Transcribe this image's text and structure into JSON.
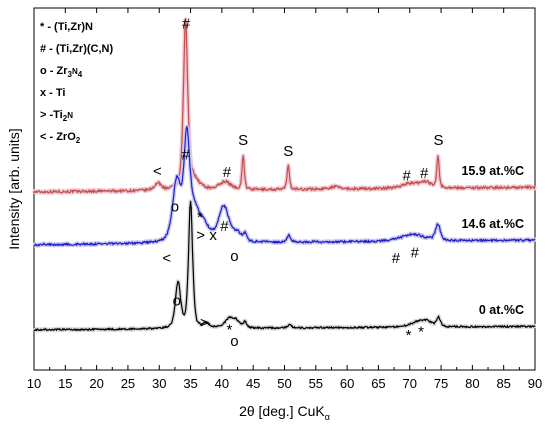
{
  "chart_data": {
    "type": "line",
    "xlabel_main": "2θ [deg.] CuK",
    "xlabel_sub": "α",
    "ylabel": "Intensity [arb. units]",
    "xlim": [
      10,
      90
    ],
    "xticks": [
      10,
      15,
      20,
      25,
      30,
      35,
      40,
      45,
      50,
      55,
      60,
      65,
      70,
      75,
      80,
      85,
      90
    ],
    "y_tick_labels_shown": false,
    "legend": [
      {
        "symbol": "*",
        "phase": "(Ti,Zr)N",
        "sub": ""
      },
      {
        "symbol": "#",
        "phase": "(Ti,Zr)(C,N)",
        "sub": ""
      },
      {
        "symbol": "o",
        "phase": "Zr3N4",
        "sub": "3,4"
      },
      {
        "symbol": "x",
        "phase": "Ti",
        "sub": ""
      },
      {
        "symbol": ">",
        "phase": "Ti2N",
        "sub": "2"
      },
      {
        "symbol": "<",
        "phase": "ZrO2",
        "sub": "2"
      }
    ],
    "legend_text": [
      {
        "pre": "* - (Ti,Zr)N"
      },
      {
        "pre": "# - (Ti,Zr)(C,N)"
      },
      {
        "pre": "o - Zr",
        "sub1": "3",
        "mid": "N",
        "sub2": "4"
      },
      {
        "pre": "x - Ti"
      },
      {
        "pre": "> -Ti",
        "sub1": "2",
        "mid": "N"
      },
      {
        "pre": "< - ZrO",
        "sub1": "2"
      }
    ],
    "series": [
      {
        "name": "15.9 at.%C",
        "color": "#c0504d",
        "halo": "#f2c6d0",
        "baseline": 0.6,
        "slope": 0.04,
        "noise": 0.012,
        "peaks": [
          {
            "x": 29.8,
            "h": 0.06,
            "w": 0.6
          },
          {
            "x": 34.2,
            "h": 1.4,
            "w": 0.35
          },
          {
            "x": 35.0,
            "h": 0.12,
            "w": 1.2
          },
          {
            "x": 40.5,
            "h": 0.07,
            "w": 1.0
          },
          {
            "x": 43.4,
            "h": 0.3,
            "w": 0.2
          },
          {
            "x": 50.6,
            "h": 0.22,
            "w": 0.2
          },
          {
            "x": 58.0,
            "h": 0.02,
            "w": 1.0
          },
          {
            "x": 70.0,
            "h": 0.04,
            "w": 1.5
          },
          {
            "x": 72.5,
            "h": 0.05,
            "w": 1.0
          },
          {
            "x": 74.5,
            "h": 0.28,
            "w": 0.2
          }
        ]
      },
      {
        "name": "14.6 at.%C",
        "color": "#1f1fc8",
        "halo": "#c9c9f0",
        "baseline": 0.14,
        "slope": 0.04,
        "noise": 0.01,
        "peaks": [
          {
            "x": 32.8,
            "h": 0.53,
            "w": 0.7
          },
          {
            "x": 34.4,
            "h": 0.85,
            "w": 0.5
          },
          {
            "x": 35.6,
            "h": 0.25,
            "w": 0.9
          },
          {
            "x": 37.2,
            "h": 0.12,
            "w": 0.9
          },
          {
            "x": 40.3,
            "h": 0.31,
            "w": 0.9
          },
          {
            "x": 42.5,
            "h": 0.07,
            "w": 0.7
          },
          {
            "x": 43.7,
            "h": 0.06,
            "w": 0.3
          },
          {
            "x": 50.7,
            "h": 0.06,
            "w": 0.3
          },
          {
            "x": 70.5,
            "h": 0.06,
            "w": 2.0
          },
          {
            "x": 74.5,
            "h": 0.14,
            "w": 0.4
          }
        ]
      },
      {
        "name": "0 at.%C",
        "color": "#000000",
        "halo": "#d8d8d8",
        "baseline": -0.6,
        "slope": 0.03,
        "noise": 0.008,
        "peaks": [
          {
            "x": 33.0,
            "h": 0.4,
            "w": 0.45
          },
          {
            "x": 35.0,
            "h": 1.1,
            "w": 0.35
          },
          {
            "x": 37.5,
            "h": 0.04,
            "w": 0.6
          },
          {
            "x": 41.2,
            "h": 0.08,
            "w": 0.8
          },
          {
            "x": 42.3,
            "h": 0.05,
            "w": 0.6
          },
          {
            "x": 43.7,
            "h": 0.05,
            "w": 0.3
          },
          {
            "x": 50.8,
            "h": 0.03,
            "w": 0.3
          },
          {
            "x": 71.2,
            "h": 0.04,
            "w": 1.3
          },
          {
            "x": 72.8,
            "h": 0.04,
            "w": 1.0
          },
          {
            "x": 74.6,
            "h": 0.08,
            "w": 0.3
          }
        ]
      }
    ],
    "series_labels": [
      {
        "text": "15.9 at.%C",
        "series": 0
      },
      {
        "text": "14.6 at.%C",
        "series": 1
      },
      {
        "text": "0 at.%C",
        "series": 2
      }
    ],
    "annotations": [
      {
        "text": "#",
        "x": 34.3,
        "y": 2.02
      },
      {
        "text": "<",
        "x": 29.7,
        "y": 0.74
      },
      {
        "text": "#",
        "x": 34.2,
        "y": 0.88
      },
      {
        "text": "#",
        "x": 40.8,
        "y": 0.73
      },
      {
        "text": "S",
        "x": 43.4,
        "y": 1.01
      },
      {
        "text": "S",
        "x": 50.6,
        "y": 0.91
      },
      {
        "text": "#",
        "x": 69.5,
        "y": 0.7
      },
      {
        "text": "#",
        "x": 72.3,
        "y": 0.72
      },
      {
        "text": "S",
        "x": 74.6,
        "y": 1.01
      },
      {
        "text": "o",
        "x": 32.5,
        "y": 0.43
      },
      {
        "text": "*",
        "x": 36.5,
        "y": 0.34
      },
      {
        "text": ">",
        "x": 36.6,
        "y": 0.18
      },
      {
        "text": "x",
        "x": 38.6,
        "y": 0.18
      },
      {
        "text": "#",
        "x": 40.4,
        "y": 0.26
      },
      {
        "text": "<",
        "x": 31.2,
        "y": -0.02
      },
      {
        "text": "o",
        "x": 42.0,
        "y": 0.0
      },
      {
        "text": "#",
        "x": 67.8,
        "y": -0.02
      },
      {
        "text": "#",
        "x": 70.8,
        "y": 0.03
      },
      {
        "text": "o",
        "x": 32.8,
        "y": -0.39
      },
      {
        "text": ">",
        "x": 37.2,
        "y": -0.58
      },
      {
        "text": "*",
        "x": 41.2,
        "y": -0.64
      },
      {
        "text": "o",
        "x": 42.0,
        "y": -0.74
      },
      {
        "text": "*",
        "x": 69.8,
        "y": -0.69
      },
      {
        "text": "*",
        "x": 71.8,
        "y": -0.66
      }
    ]
  }
}
